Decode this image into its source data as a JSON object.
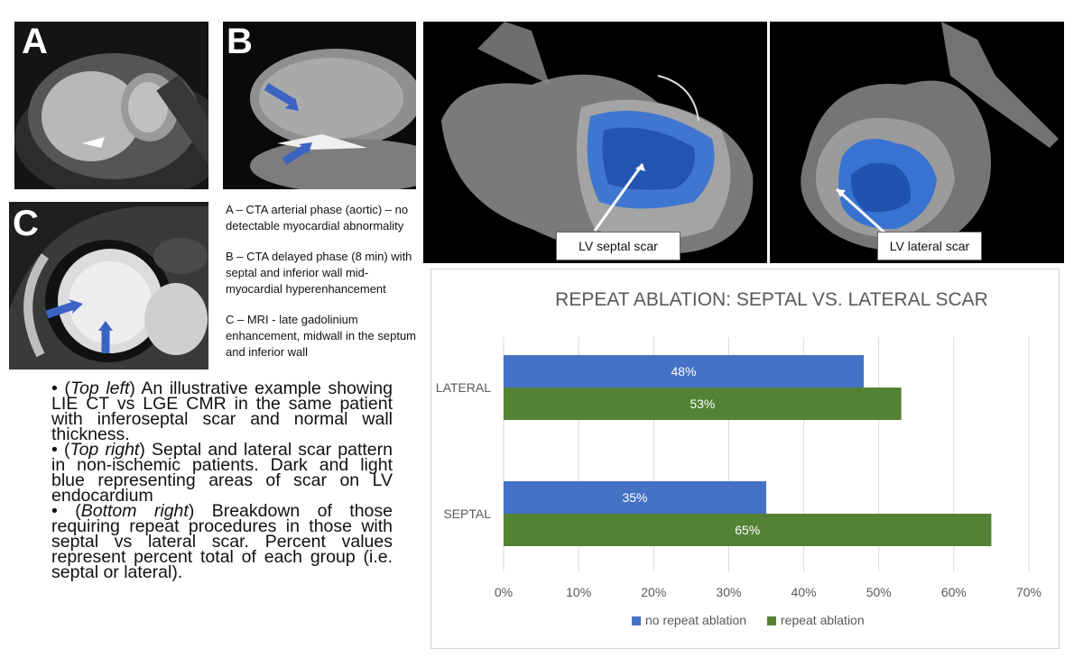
{
  "panels": {
    "a_letter": "A",
    "b_letter": "B",
    "c_letter": "C"
  },
  "captions": {
    "a": "A – CTA arterial phase (aortic) – no detectable myocardial abnormality",
    "b": "B – CTA delayed phase (8 min) with septal and inferior wall mid-myocardial hyperenhancement",
    "c": "C – MRI - late gadolinium enhancement, midwall in the septum and inferior wall"
  },
  "bullets": [
    {
      "prefix": "• (",
      "italic": "Top left",
      "text": ") An illustrative example showing LIE CT vs LGE CMR in the same patient with inferoseptal scar and normal wall thickness."
    },
    {
      "prefix": "• (",
      "italic": "Top right",
      "text": ") Septal and lateral scar pattern in non-ischemic patients. Dark and light blue representing areas of scar on LV endocardium"
    },
    {
      "prefix": "• (",
      "italic": "Bottom right",
      "text": ") Breakdown of those requiring repeat procedures in those with septal vs lateral scar. Percent values represent percent total of each group (i.e. septal or lateral)."
    }
  ],
  "scar_labels": {
    "septal": "LV septal scar",
    "lateral": "LV lateral scar"
  },
  "chart_data": {
    "type": "bar",
    "orientation": "horizontal",
    "title": "REPEAT ABLATION: SEPTAL VS. LATERAL SCAR",
    "categories": [
      "LATERAL",
      "SEPTAL"
    ],
    "series": [
      {
        "name": "no repeat ablation",
        "color": "#4472c4",
        "values": [
          48,
          35
        ],
        "labels": [
          "48%",
          "35%"
        ]
      },
      {
        "name": "repeat ablation",
        "color": "#548235",
        "values": [
          53,
          65
        ],
        "labels": [
          "53%",
          "65%"
        ]
      }
    ],
    "xlim": [
      0,
      70
    ],
    "ticks": [
      "0%",
      "10%",
      "20%",
      "30%",
      "40%",
      "50%",
      "60%",
      "70%"
    ],
    "grid": true,
    "legend": "bottom"
  }
}
